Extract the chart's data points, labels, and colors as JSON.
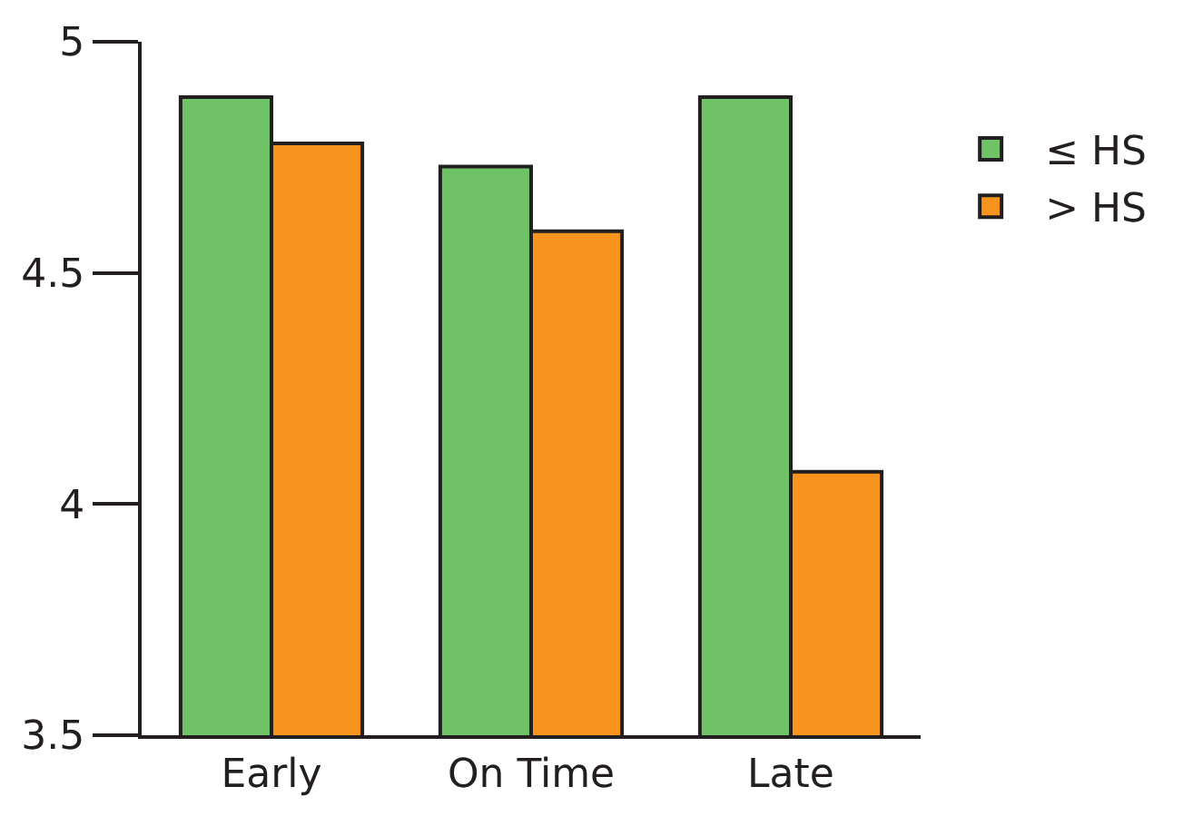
{
  "chart_data": {
    "type": "bar",
    "categories": [
      "Early",
      "On Time",
      "Late"
    ],
    "series": [
      {
        "name": "≤ HS",
        "color": "#70c267",
        "values": [
          4.88,
          4.73,
          4.88
        ]
      },
      {
        "name": "> HS",
        "color": "#f7941d",
        "values": [
          4.78,
          4.59,
          4.07
        ]
      }
    ],
    "ylim": [
      3.5,
      5
    ],
    "yticks": [
      3.5,
      4,
      4.5,
      5
    ],
    "grid": false,
    "legend": "top right"
  }
}
